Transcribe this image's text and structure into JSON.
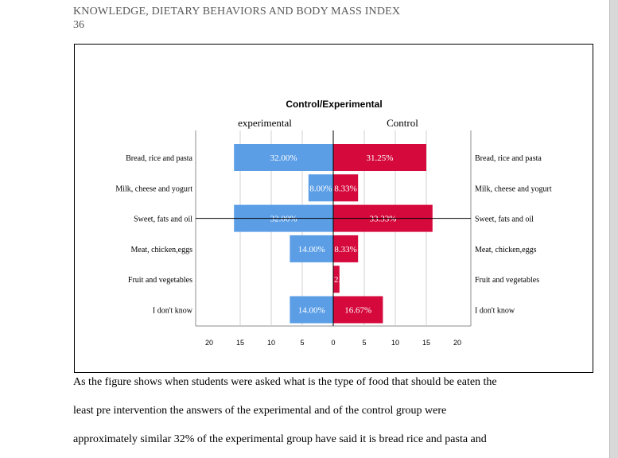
{
  "header": {
    "running_head": "KNOWLEDGE, DIETARY BEHAVIORS AND BODY MASS INDEX",
    "page_number": "36"
  },
  "chart_data": {
    "type": "bar",
    "orientation": "horizontal-pyramid",
    "title": "Control/Experimental",
    "categories": [
      "Bread, rice and pasta",
      "Milk, cheese and yogurt",
      "Sweet, fats and oil",
      "Meat, chicken,eggs",
      "Fruit and vegetables",
      "I don't know"
    ],
    "series": [
      {
        "name": "experimental",
        "side": "left",
        "values": [
          16,
          4,
          16,
          7,
          0,
          7
        ],
        "labels": [
          "32.00%",
          "8.00%",
          "32.00%",
          "14.00%",
          "",
          "14.00%"
        ]
      },
      {
        "name": "Control",
        "side": "right",
        "values": [
          15,
          4,
          16,
          4,
          1,
          8
        ],
        "labels": [
          "31.25%",
          "8.33%",
          "33.33%",
          "8.33%",
          "2.",
          "16.67%"
        ]
      }
    ],
    "x_ticks": [
      "20",
      "15",
      "10",
      "5",
      "0",
      "5",
      "10",
      "15",
      "20"
    ],
    "xlim": [
      -20,
      20
    ],
    "grid": true,
    "colors": {
      "experimental": "#5b9ee6",
      "control": "#d5093c"
    }
  },
  "paragraph": [
    "As the figure shows when students were asked what is the type of food that should be eaten the",
    "least pre intervention the answers of the experimental and of the control group were",
    "approximately similar 32% of the experimental group have said it is bread rice and pasta and"
  ]
}
